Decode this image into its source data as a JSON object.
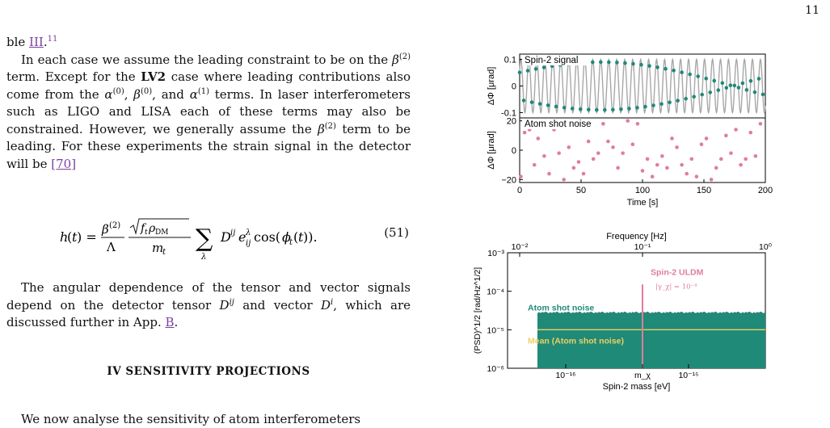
{
  "page_number": "11",
  "para1": {
    "pre": "ble ",
    "link": "III",
    "sup": "11"
  },
  "para2": {
    "t1": "In each case we assume the leading constraint to be on the ",
    "t2": " term. Except for the ",
    "bold": "LV2",
    "t3": " case where leading contributions also come from the ",
    "t4": ", and ",
    "t5": " terms. In laser interferometers such as LIGO and LISA each of these terms may also be constrained. However, we generally assume the ",
    "t6": " term to be leading. For these experiments the strain signal in the detector will be ",
    "cite": "[70]"
  },
  "equation": {
    "number": "(51)"
  },
  "para3": {
    "t1": "The angular dependence of the tensor and vector signals depend on the detector tensor ",
    "t2": " and vector ",
    "t3": ", which are discussed further in App. ",
    "link": "B",
    "t4": "."
  },
  "section_heading": "IV   SENSITIVITY PROJECTIONS",
  "para4": "We now analyse the sensitivity of atom interferometers",
  "colors": {
    "teal": "#1f8a78",
    "teal_dark": "#17695d",
    "pink": "#e07d9c",
    "gray": "#a8a8a8",
    "yellow": "#f0d060"
  },
  "chart_data": [
    {
      "type": "scatter",
      "panel": "top",
      "annotation": "Spin-2 signal",
      "ylabel": "ΔΦ [μrad]",
      "yticks": [
        "0.1",
        "0",
        "-0.1"
      ],
      "ylim": [
        -0.12,
        0.12
      ],
      "xlim": [
        0,
        200
      ],
      "series": [
        {
          "kind": "line",
          "color": "gray",
          "period_s": 6.5,
          "amplitude": 0.1
        },
        {
          "kind": "points",
          "color": "teal",
          "sample_interval_s": 3.3
        }
      ]
    },
    {
      "type": "scatter",
      "panel": "middle",
      "annotation": "Atom shot noise",
      "ylabel": "ΔΦ [μrad]",
      "yticks": [
        "20",
        "0",
        "−20"
      ],
      "xticks": [
        "0",
        "50",
        "100",
        "150",
        "200"
      ],
      "xlabel": "Time [s]",
      "ylim": [
        -22,
        22
      ],
      "xlim": [
        0,
        200
      ],
      "series": [
        {
          "kind": "points",
          "color": "pink",
          "x": [
            1,
            4,
            8,
            12,
            15,
            20,
            24,
            28,
            32,
            36,
            40,
            44,
            48,
            52,
            56,
            60,
            64,
            68,
            72,
            76,
            80,
            84,
            88,
            92,
            96,
            100,
            104,
            108,
            112,
            116,
            120,
            124,
            128,
            132,
            136,
            140,
            144,
            148,
            152,
            156,
            160,
            164,
            168,
            172,
            176,
            180,
            184,
            188,
            192,
            196
          ],
          "y": [
            -18,
            12,
            14,
            -10,
            8,
            -4,
            -16,
            14,
            -2,
            -20,
            2,
            -12,
            -8,
            -16,
            6,
            -6,
            -2,
            18,
            6,
            2,
            -12,
            -2,
            20,
            4,
            18,
            -14,
            -6,
            -18,
            -10,
            -4,
            -12,
            8,
            2,
            -10,
            -16,
            -6,
            -18,
            4,
            8,
            -20,
            -12,
            -6,
            10,
            -2,
            14,
            -10,
            -6,
            12,
            -4,
            18
          ]
        }
      ]
    },
    {
      "type": "area",
      "panel": "bottom",
      "top_axis_label": "Frequency [Hz]",
      "top_ticks": [
        "10⁻²",
        "10⁻¹",
        "10⁰"
      ],
      "xlabel": "Spin-2 mass [eV]",
      "xticks": [
        "10⁻¹⁶",
        "m_χ",
        "10⁻¹⁵"
      ],
      "ylabel": "(PSD)^1/2 [rad/Hz^1/2]",
      "yticks": [
        "10⁻³",
        "10⁻⁴",
        "10⁻⁵",
        "10⁻⁶"
      ],
      "ylog": true,
      "ylim": [
        1e-06,
        0.001
      ],
      "series": [
        {
          "name": "Atom shot noise",
          "color": "teal",
          "level": 2.7e-05,
          "ceiling": 3e-05
        },
        {
          "name": "Mean (Atom shot noise)",
          "color": "yellow",
          "level": 1e-05
        },
        {
          "name": "Spin-2 ULDM",
          "color": "pink",
          "peak": 0.00015,
          "sublabel": "|γ_χ| = 10⁻⁴"
        }
      ]
    }
  ]
}
